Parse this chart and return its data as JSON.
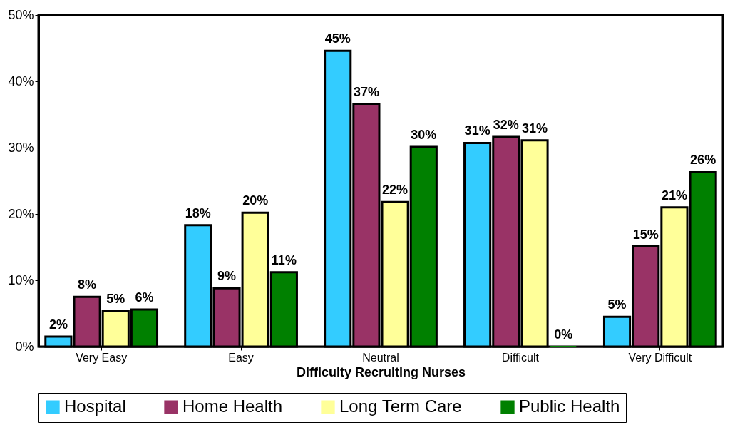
{
  "chart_data": {
    "type": "bar",
    "xlabel": "Difficulty Recruiting Nurses",
    "categories": [
      "Very Easy",
      "Easy",
      "Neutral",
      "Difficult",
      "Very Difficult"
    ],
    "series": [
      {
        "name": "Hospital",
        "color": "#33ccff",
        "values": [
          1.5,
          18.3,
          44.6,
          30.7,
          4.5
        ],
        "value_labels": [
          "2%",
          "18%",
          "45%",
          "31%",
          "5%"
        ]
      },
      {
        "name": "Home Health",
        "color": "#993366",
        "values": [
          7.5,
          8.8,
          36.6,
          31.6,
          15.1
        ],
        "value_labels": [
          "8%",
          "9%",
          "37%",
          "32%",
          "15%"
        ]
      },
      {
        "name": "Long Term Care",
        "color": "#ffff99",
        "values": [
          5.4,
          20.2,
          21.8,
          31.1,
          21.0
        ],
        "value_labels": [
          "5%",
          "20%",
          "22%",
          "31%",
          "21%"
        ]
      },
      {
        "name": "Public Health",
        "color": "#008000",
        "values": [
          5.6,
          11.2,
          30.1,
          0,
          26.3
        ],
        "value_labels": [
          "6%",
          "11%",
          "30%",
          "0%",
          "26%"
        ]
      }
    ],
    "ylim": [
      0,
      50
    ],
    "yticks": [
      {
        "value": 0,
        "label": "0%"
      },
      {
        "value": 10,
        "label": "10%"
      },
      {
        "value": 20,
        "label": "20%"
      },
      {
        "value": 30,
        "label": "30%"
      },
      {
        "value": 40,
        "label": "40%"
      },
      {
        "value": 50,
        "label": "50%"
      }
    ],
    "grid": false,
    "legend": "bottom"
  }
}
